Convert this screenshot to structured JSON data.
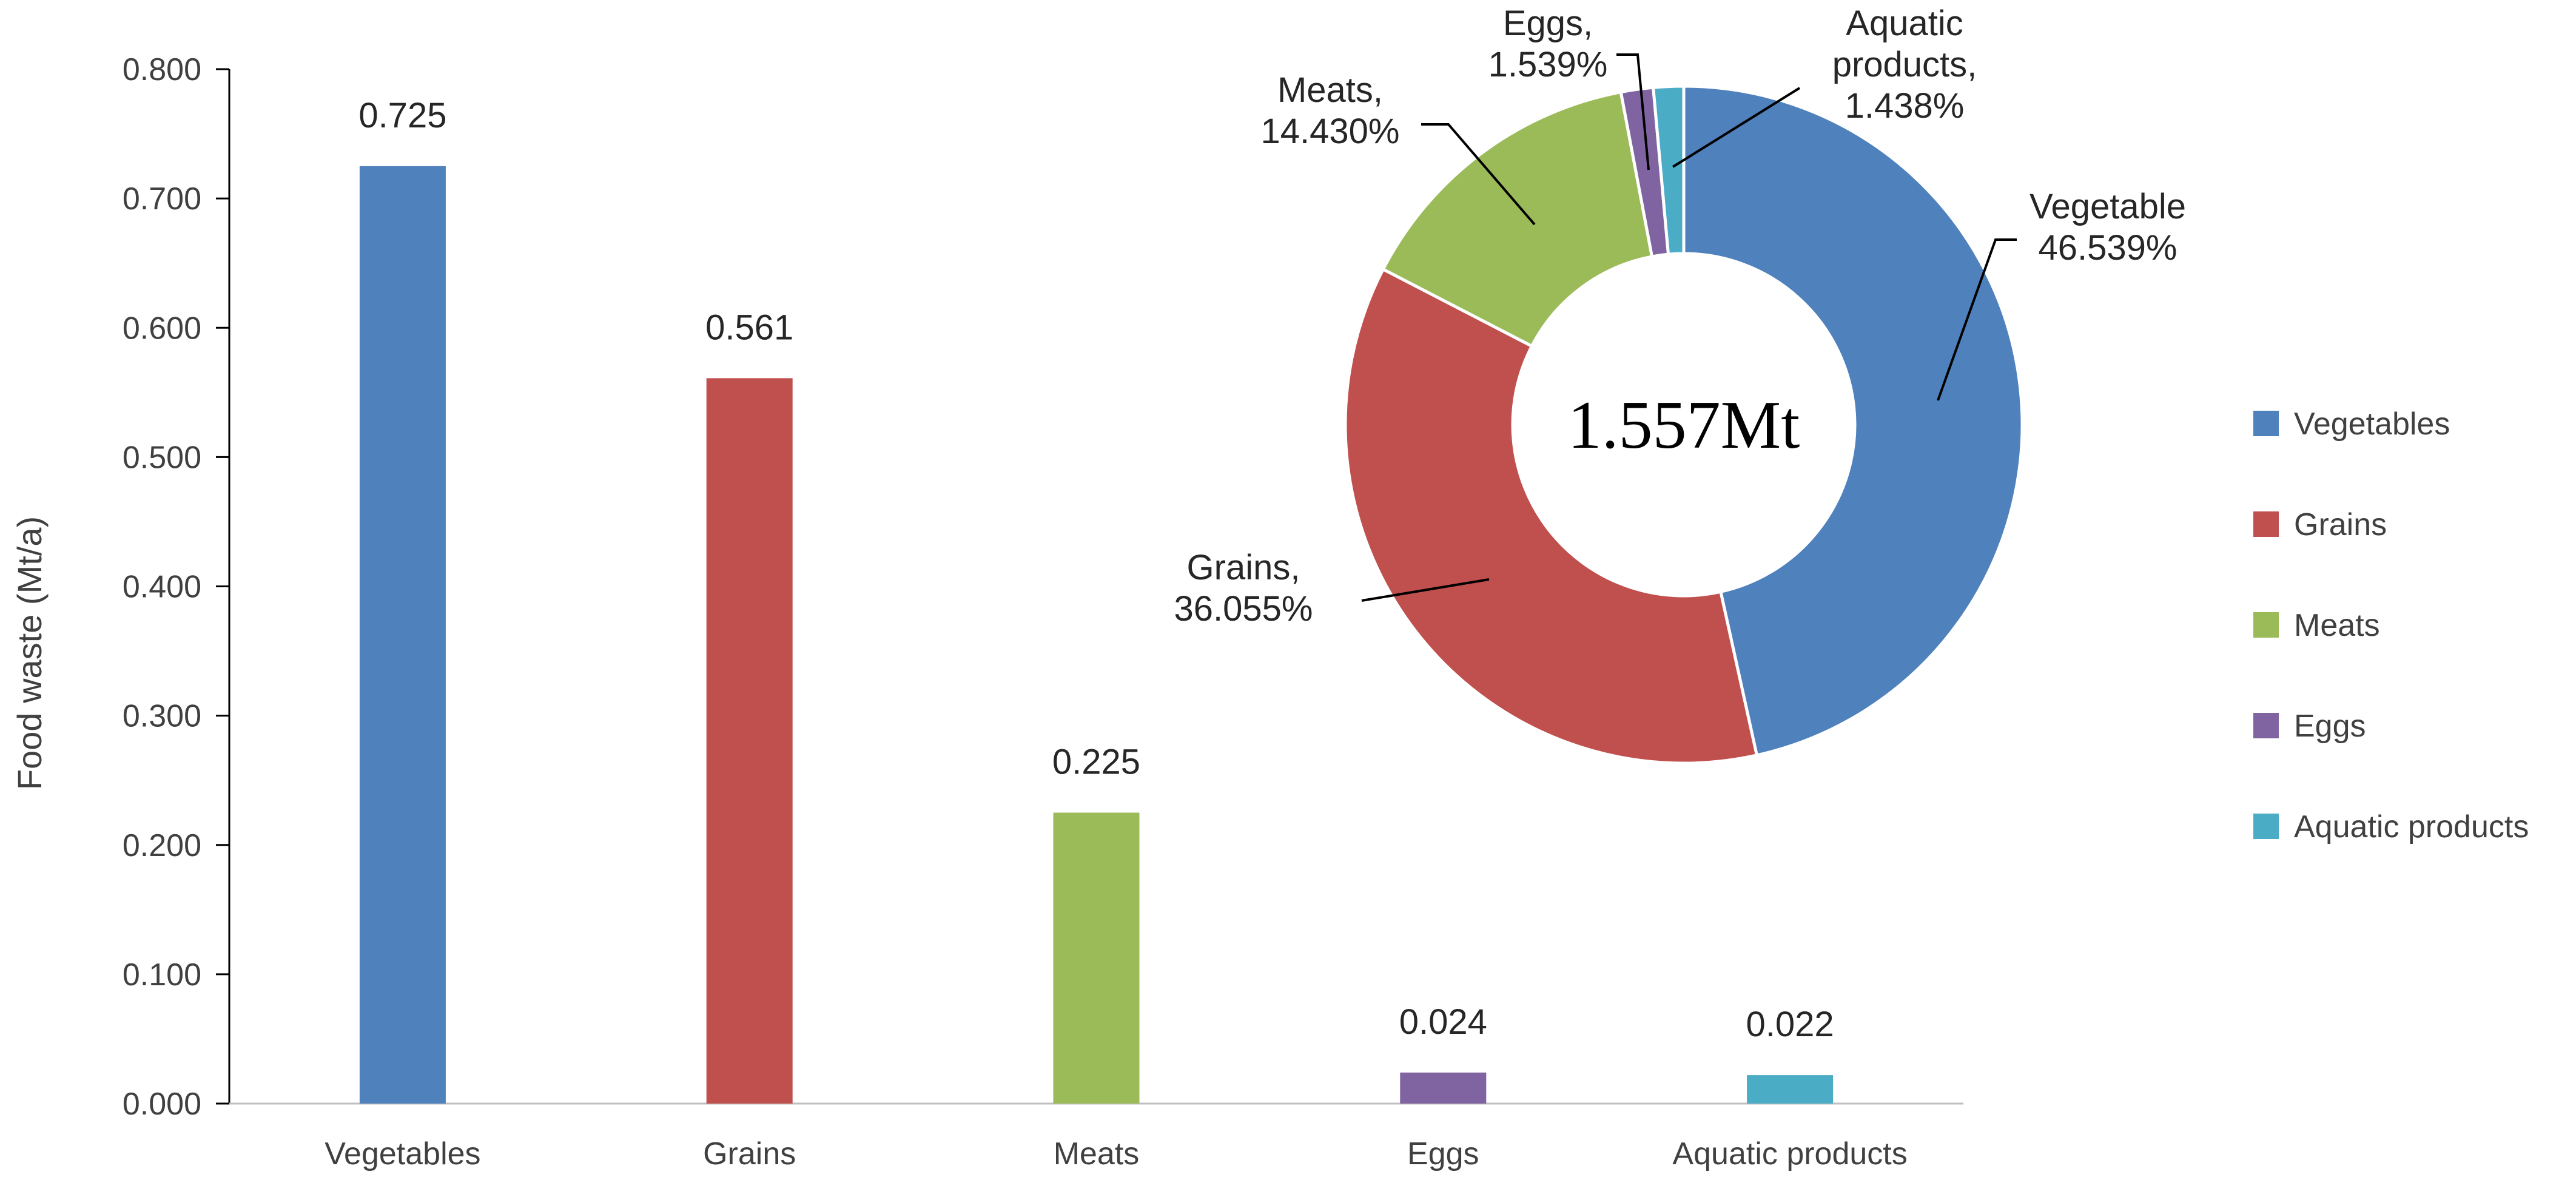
{
  "chart_data": [
    {
      "type": "bar",
      "categories": [
        "Vegetables",
        "Grains",
        "Meats",
        "Eggs",
        "Aquatic products"
      ],
      "values": [
        0.725,
        0.561,
        0.225,
        0.024,
        0.022
      ],
      "data_labels": [
        "0.725",
        "0.561",
        "0.225",
        "0.024",
        "0.022"
      ],
      "ylabel": "Food waste (Mt/a)",
      "xlabel": "",
      "ylim": [
        0,
        0.8
      ],
      "yticks": [
        "0.000",
        "0.100",
        "0.200",
        "0.300",
        "0.400",
        "0.500",
        "0.600",
        "0.700",
        "0.800"
      ],
      "colors": [
        "#4F81BD",
        "#C0504D",
        "#9BBB59",
        "#8064A2",
        "#4BACC6"
      ],
      "grid": false
    },
    {
      "type": "pie",
      "subtype": "donut",
      "center_label": "1.557Mt",
      "slices": [
        {
          "name": "Vegetable",
          "percent": 46.539,
          "label_lines": [
            "Vegetable",
            "46.539%"
          ],
          "color": "#4F81BD"
        },
        {
          "name": "Grains",
          "percent": 36.055,
          "label_lines": [
            "Grains,",
            "36.055%"
          ],
          "color": "#C0504D"
        },
        {
          "name": "Meats",
          "percent": 14.43,
          "label_lines": [
            "Meats,",
            "14.430%"
          ],
          "color": "#9BBB59"
        },
        {
          "name": "Eggs",
          "percent": 1.539,
          "label_lines": [
            "Eggs,",
            "1.539%"
          ],
          "color": "#8064A2"
        },
        {
          "name": "Aquatic products",
          "percent": 1.438,
          "label_lines": [
            "Aquatic",
            "products,",
            "1.438%"
          ],
          "color": "#4BACC6"
        }
      ],
      "legend": {
        "placement": "right",
        "entries": [
          {
            "label": "Vegetables",
            "color": "#4F81BD"
          },
          {
            "label": "Grains",
            "color": "#C0504D"
          },
          {
            "label": "Meats",
            "color": "#9BBB59"
          },
          {
            "label": "Eggs",
            "color": "#8064A2"
          },
          {
            "label": "Aquatic products",
            "color": "#4BACC6"
          }
        ]
      }
    }
  ]
}
